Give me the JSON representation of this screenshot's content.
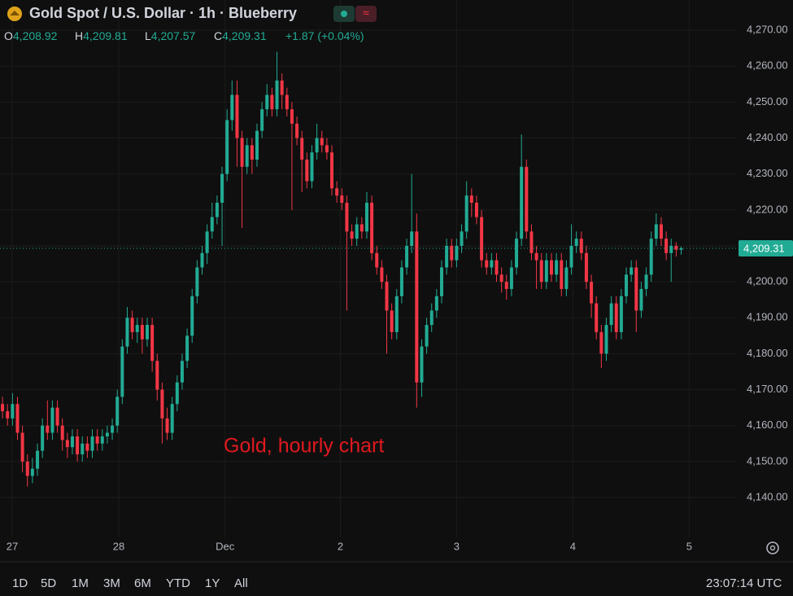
{
  "header": {
    "title": "Gold Spot / U.S. Dollar · 1h · Blueberry",
    "ohlc": [
      {
        "key": "O",
        "value": "4,208.92"
      },
      {
        "key": "H",
        "value": "4,209.81"
      },
      {
        "key": "L",
        "value": "4,207.57"
      },
      {
        "key": "C",
        "value": "4,209.31"
      }
    ],
    "change": "+1.87 (+0.04%)"
  },
  "chart_data": {
    "type": "candlestick",
    "annotation": "Gold, hourly chart",
    "up_color": "#22ab94",
    "down_color": "#f23645",
    "open": [
      4166,
      4164,
      4162,
      4166,
      4158,
      4150,
      4146,
      4148,
      4153,
      4160,
      4158,
      4165,
      4160,
      4156,
      4154,
      4157,
      4152,
      4155,
      4153,
      4157,
      4155,
      4157,
      4158,
      4160,
      4168,
      4182,
      4190,
      4186,
      4188,
      4184,
      4188,
      4178,
      4170,
      4162,
      4158,
      4166,
      4172,
      4178,
      4185,
      4196,
      4204,
      4208,
      4214,
      4218,
      4222,
      4230,
      4245,
      4252,
      4240,
      4232,
      4238,
      4234,
      4242,
      4248,
      4252,
      4248,
      4256,
      4252,
      4248,
      4244,
      4240,
      4234,
      4228,
      4236,
      4240,
      4238,
      4236,
      4226,
      4224,
      4222,
      4214,
      4212,
      4216,
      4214,
      4222,
      4208,
      4204,
      4200,
      4192,
      4186,
      4196,
      4204,
      4210,
      4214,
      4172,
      4182,
      4188,
      4192,
      4196,
      4204,
      4210,
      4206,
      4210,
      4214,
      4224,
      4222,
      4218,
      4206,
      4204,
      4206,
      4202,
      4200,
      4198,
      4204,
      4212,
      4232,
      4214,
      4208,
      4206,
      4200,
      4206,
      4202,
      4206,
      4198,
      4204,
      4210,
      4212,
      4208,
      4200,
      4194,
      4186,
      4180,
      4188,
      4194,
      4186,
      4196,
      4202,
      4204,
      4192,
      4198,
      4202,
      4212,
      4216,
      4212,
      4208,
      4210,
      4208.92
    ],
    "high": [
      4168,
      4166,
      4169,
      4168,
      4160,
      4152,
      4151,
      4155,
      4162,
      4167,
      4167,
      4167,
      4162,
      4158,
      4159,
      4159,
      4157,
      4157,
      4159,
      4159,
      4159,
      4160,
      4162,
      4170,
      4184,
      4193,
      4192,
      4190,
      4190,
      4190,
      4190,
      4180,
      4172,
      4165,
      4168,
      4174,
      4180,
      4187,
      4198,
      4206,
      4210,
      4216,
      4222,
      4224,
      4232,
      4248,
      4256,
      4256,
      4242,
      4240,
      4240,
      4244,
      4250,
      4255,
      4254,
      4264,
      4258,
      4254,
      4250,
      4246,
      4242,
      4236,
      4238,
      4244,
      4242,
      4240,
      4238,
      4228,
      4226,
      4224,
      4216,
      4218,
      4218,
      4225,
      4224,
      4210,
      4206,
      4202,
      4194,
      4198,
      4206,
      4212,
      4230,
      4219,
      4184,
      4190,
      4194,
      4198,
      4206,
      4212,
      4212,
      4212,
      4216,
      4228,
      4226,
      4224,
      4220,
      4208,
      4208,
      4208,
      4204,
      4202,
      4206,
      4214,
      4241,
      4234,
      4216,
      4210,
      4208,
      4208,
      4208,
      4208,
      4208,
      4206,
      4216,
      4214,
      4214,
      4210,
      4202,
      4196,
      4188,
      4190,
      4196,
      4196,
      4198,
      4204,
      4206,
      4206,
      4200,
      4204,
      4214,
      4219,
      4218,
      4214,
      4212,
      4211,
      4209.81
    ],
    "low": [
      4162,
      4160,
      4160,
      4156,
      4147,
      4143,
      4144,
      4146,
      4151,
      4156,
      4156,
      4158,
      4153,
      4151,
      4152,
      4150,
      4150,
      4151,
      4151,
      4153,
      4153,
      4155,
      4156,
      4158,
      4166,
      4180,
      4184,
      4183,
      4180,
      4182,
      4175,
      4167,
      4155,
      4156,
      4156,
      4164,
      4170,
      4176,
      4183,
      4194,
      4202,
      4205,
      4212,
      4216,
      4210,
      4228,
      4242,
      4232,
      4215,
      4230,
      4230,
      4232,
      4240,
      4246,
      4246,
      4246,
      4248,
      4246,
      4220,
      4238,
      4225,
      4226,
      4226,
      4234,
      4236,
      4234,
      4224,
      4222,
      4220,
      4192,
      4210,
      4210,
      4212,
      4212,
      4206,
      4202,
      4198,
      4180,
      4184,
      4184,
      4194,
      4202,
      4208,
      4165,
      4168,
      4180,
      4186,
      4190,
      4194,
      4202,
      4204,
      4204,
      4208,
      4212,
      4218,
      4216,
      4204,
      4202,
      4202,
      4200,
      4197,
      4195,
      4196,
      4202,
      4210,
      4212,
      4206,
      4198,
      4198,
      4198,
      4200,
      4200,
      4196,
      4196,
      4202,
      4208,
      4206,
      4198,
      4190,
      4184,
      4176,
      4178,
      4186,
      4184,
      4184,
      4194,
      4200,
      4186,
      4190,
      4196,
      4200,
      4210,
      4210,
      4206,
      4200,
      4207,
      4207.57
    ],
    "close": [
      4164,
      4162,
      4166,
      4158,
      4150,
      4146,
      4148,
      4153,
      4160,
      4158,
      4165,
      4160,
      4156,
      4154,
      4157,
      4152,
      4155,
      4153,
      4157,
      4155,
      4157,
      4158,
      4160,
      4168,
      4182,
      4190,
      4186,
      4188,
      4184,
      4188,
      4178,
      4170,
      4162,
      4158,
      4166,
      4172,
      4178,
      4185,
      4196,
      4204,
      4208,
      4214,
      4218,
      4222,
      4230,
      4245,
      4252,
      4240,
      4232,
      4238,
      4234,
      4242,
      4248,
      4252,
      4248,
      4256,
      4252,
      4248,
      4244,
      4240,
      4234,
      4228,
      4236,
      4240,
      4238,
      4236,
      4226,
      4224,
      4222,
      4214,
      4212,
      4216,
      4214,
      4222,
      4208,
      4204,
      4200,
      4192,
      4186,
      4196,
      4204,
      4210,
      4214,
      4172,
      4182,
      4188,
      4192,
      4196,
      4204,
      4210,
      4206,
      4210,
      4214,
      4224,
      4222,
      4218,
      4206,
      4204,
      4206,
      4202,
      4200,
      4198,
      4204,
      4212,
      4232,
      4214,
      4208,
      4206,
      4200,
      4206,
      4202,
      4206,
      4198,
      4204,
      4210,
      4212,
      4208,
      4200,
      4194,
      4186,
      4180,
      4188,
      4194,
      4186,
      4196,
      4202,
      4204,
      4192,
      4198,
      4202,
      4212,
      4216,
      4212,
      4208,
      4210,
      4208.92,
      4209.31
    ],
    "last_price_label": "4,209.31",
    "xlim": [
      -0.5,
      147
    ],
    "xticks": [
      {
        "value": 1.94,
        "label": "27"
      },
      {
        "value": 23.3,
        "label": "28"
      },
      {
        "value": 44.6,
        "label": "Dec"
      },
      {
        "value": 67.7,
        "label": "2"
      },
      {
        "value": 91,
        "label": "3"
      },
      {
        "value": 114.3,
        "label": "4"
      },
      {
        "value": 137.6,
        "label": "5"
      }
    ],
    "ylim": [
      4128.9,
      4278.4
    ],
    "yticks": [
      {
        "value": 4140,
        "label": "4,140.00"
      },
      {
        "value": 4150,
        "label": "4,150.00"
      },
      {
        "value": 4160,
        "label": "4,160.00"
      },
      {
        "value": 4170,
        "label": "4,170.00"
      },
      {
        "value": 4180,
        "label": "4,180.00"
      },
      {
        "value": 4190,
        "label": "4,190.00"
      },
      {
        "value": 4200,
        "label": "4,200.00"
      },
      {
        "value": 4210,
        "label": "4,210.00"
      },
      {
        "value": 4220,
        "label": "4,220.00"
      },
      {
        "value": 4230,
        "label": "4,230.00"
      },
      {
        "value": 4240,
        "label": "4,240.00"
      },
      {
        "value": 4250,
        "label": "4,250.00"
      },
      {
        "value": 4260,
        "label": "4,260.00"
      },
      {
        "value": 4270,
        "label": "4,270.00"
      }
    ],
    "grid": true
  },
  "footer": {
    "ranges": [
      "1D",
      "5D",
      "1M",
      "3M",
      "6M",
      "YTD",
      "1Y",
      "All"
    ],
    "time": "23:07:14 UTC"
  }
}
